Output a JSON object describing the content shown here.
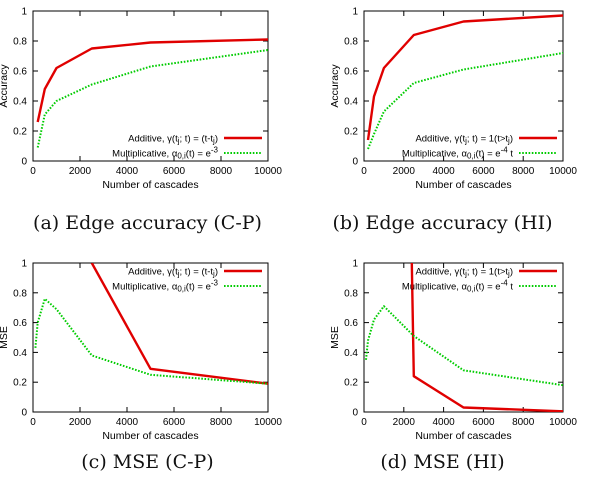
{
  "chart_data": [
    {
      "type": "line",
      "caption": "(a) Edge accuracy (C-P)",
      "xlabel": "Number of cascades",
      "ylabel": "Accuracy",
      "xlim": [
        0,
        10000
      ],
      "ylim": [
        0,
        1
      ],
      "xticks": [
        0,
        2000,
        4000,
        6000,
        8000,
        10000
      ],
      "yticks": [
        0,
        0.2,
        0.4,
        0.6,
        0.8,
        1
      ],
      "ytick_labels": [
        "0",
        "0.2",
        "0.4",
        "0.6",
        "0.8",
        "1"
      ],
      "legend_position": "bottom-right",
      "series": [
        {
          "name": "Additive, γ(tj; t) = (t-tj)",
          "color": "#e00000",
          "style": "solid",
          "x": [
            200,
            500,
            1000,
            2500,
            5000,
            10000
          ],
          "y": [
            0.26,
            0.48,
            0.62,
            0.75,
            0.79,
            0.81
          ]
        },
        {
          "name": "Multiplicative, α0,i(t) = e-3",
          "color": "#00cc00",
          "style": "dotted",
          "x": [
            200,
            500,
            1000,
            2500,
            5000,
            10000
          ],
          "y": [
            0.09,
            0.31,
            0.4,
            0.51,
            0.63,
            0.74
          ]
        }
      ]
    },
    {
      "type": "line",
      "caption": "(b) Edge accuracy (HI)",
      "xlabel": "Number of cascades",
      "ylabel": "Accuracy",
      "xlim": [
        0,
        10000
      ],
      "ylim": [
        0,
        1
      ],
      "xticks": [
        0,
        2000,
        4000,
        6000,
        8000,
        10000
      ],
      "yticks": [
        0,
        0.2,
        0.4,
        0.6,
        0.8,
        1
      ],
      "ytick_labels": [
        "0",
        "0.2",
        "0.4",
        "0.6",
        "0.8",
        "1"
      ],
      "legend_position": "bottom-right",
      "series": [
        {
          "name": "Additive, γ(tj; t) = 1(t>tj)",
          "color": "#e00000",
          "style": "solid",
          "x": [
            200,
            500,
            1000,
            2500,
            5000,
            10000
          ],
          "y": [
            0.14,
            0.43,
            0.62,
            0.84,
            0.93,
            0.97
          ]
        },
        {
          "name": "Multiplicative, α0,i(t) = e-4 t",
          "color": "#00cc00",
          "style": "dotted",
          "x": [
            200,
            500,
            1000,
            2500,
            5000,
            10000
          ],
          "y": [
            0.08,
            0.18,
            0.33,
            0.52,
            0.61,
            0.72
          ]
        }
      ]
    },
    {
      "type": "line",
      "caption": "(c) MSE (C-P)",
      "xlabel": "Number of cascades",
      "ylabel": "MSE",
      "xlim": [
        0,
        10000
      ],
      "ylim": [
        0,
        1
      ],
      "xticks": [
        0,
        2000,
        4000,
        6000,
        8000,
        10000
      ],
      "yticks": [
        0,
        0.2,
        0.4,
        0.6,
        0.8,
        1
      ],
      "ytick_labels": [
        "0",
        "0.2",
        "0.4",
        "0.6",
        "0.8",
        "1"
      ],
      "legend_position": "top-right",
      "series": [
        {
          "name": "Additive, γ(tj; t) = (t-tj)",
          "color": "#e00000",
          "style": "solid",
          "x": [
            2500,
            5000,
            10000
          ],
          "y": [
            1.0,
            0.29,
            0.19
          ]
        },
        {
          "name": "Multiplicative, α0,i(t) = e-3",
          "color": "#00cc00",
          "style": "dotted",
          "x": [
            100,
            200,
            500,
            1000,
            2500,
            5000,
            10000
          ],
          "y": [
            0.43,
            0.6,
            0.76,
            0.69,
            0.38,
            0.25,
            0.19
          ]
        }
      ]
    },
    {
      "type": "line",
      "caption": "(d) MSE (HI)",
      "xlabel": "Number of cascades",
      "ylabel": "MSE",
      "xlim": [
        0,
        10000
      ],
      "ylim": [
        0,
        1
      ],
      "xticks": [
        0,
        2000,
        4000,
        6000,
        8000,
        10000
      ],
      "yticks": [
        0,
        0.2,
        0.4,
        0.6,
        0.8,
        1
      ],
      "ytick_labels": [
        "0",
        "0.2",
        "0.4",
        "0.6",
        "0.8",
        "1"
      ],
      "legend_position": "top-right",
      "series": [
        {
          "name": "Additive, γ(tj; t) = 1(t>tj)",
          "color": "#e00000",
          "style": "solid",
          "x": [
            2400,
            2500,
            5000,
            10000
          ],
          "y": [
            1.0,
            0.24,
            0.03,
            0.005
          ]
        },
        {
          "name": "Multiplicative, α0,i(t) = e-4 t",
          "color": "#00cc00",
          "style": "dotted",
          "x": [
            100,
            200,
            500,
            1000,
            2500,
            5000,
            10000
          ],
          "y": [
            0.35,
            0.48,
            0.62,
            0.71,
            0.51,
            0.28,
            0.18
          ]
        }
      ]
    }
  ]
}
